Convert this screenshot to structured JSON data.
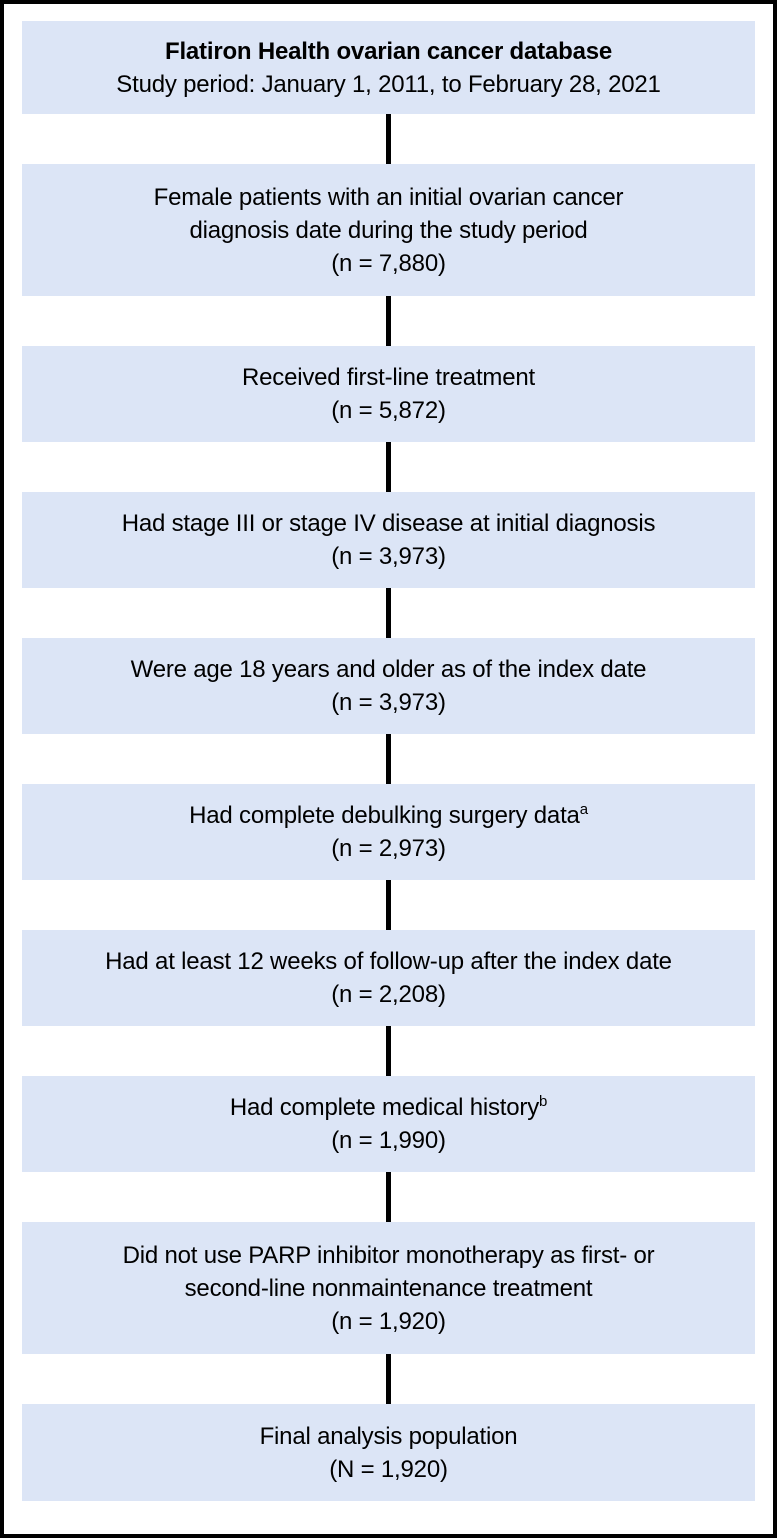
{
  "figure": {
    "header": {
      "title": "Flatiron Health ovarian cancer database",
      "subtitle": "Study period: January 1, 2011, to February 28, 2021"
    },
    "steps": [
      {
        "lines": [
          "Female patients with an initial ovarian cancer",
          "diagnosis date during the study period"
        ],
        "count": "(n = 7,880)"
      },
      {
        "lines": [
          "Received first-line treatment"
        ],
        "count": "(n = 5,872)"
      },
      {
        "lines": [
          "Had stage III or stage IV disease at initial diagnosis"
        ],
        "count": "(n = 3,973)"
      },
      {
        "lines": [
          "Were age 18 years and older as of the index date"
        ],
        "count": "(n = 3,973)"
      },
      {
        "lines": [
          "Had complete debulking surgery data"
        ],
        "footnote_marker": "a",
        "count": "(n = 2,973)"
      },
      {
        "lines": [
          "Had at least 12 weeks of follow-up after the index date"
        ],
        "count": "(n = 2,208)"
      },
      {
        "lines": [
          "Had complete medical history"
        ],
        "footnote_marker": "b",
        "count": "(n = 1,990)"
      },
      {
        "lines": [
          "Did not use PARP inhibitor monotherapy as first- or",
          "second-line nonmaintenance treatment"
        ],
        "count": "(n = 1,920)"
      },
      {
        "lines": [
          "Final analysis population"
        ],
        "count": "(N = 1,920)"
      }
    ],
    "colors": {
      "box_background": "#dce5f6",
      "frame_border": "#000000",
      "connector": "#000000",
      "text": "#000000"
    }
  }
}
